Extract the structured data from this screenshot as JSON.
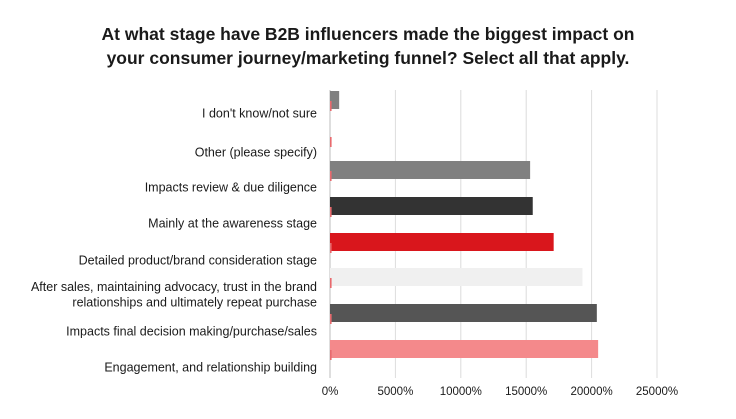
{
  "chart_data": {
    "type": "bar",
    "orientation": "horizontal",
    "title_lines": [
      "At what stage have B2B influencers made the biggest impact on",
      "your consumer journey/marketing funnel? Select all that apply."
    ],
    "categories": [
      [
        "I don't know/not sure"
      ],
      [
        "Other (please specify)"
      ],
      [
        "Impacts review & due diligence"
      ],
      [
        "Mainly at the awareness stage"
      ],
      [
        "Detailed product/brand consideration stage"
      ],
      [
        "After sales, maintaining advocacy, trust in the brand",
        "relationships and ultimately repeat purchase"
      ],
      [
        "Impacts final decision making/purchase/sales"
      ],
      [
        "Engagement, and relationship building"
      ]
    ],
    "series": [
      {
        "color": "#808080",
        "values": [
          700,
          0,
          15300,
          0,
          0,
          0,
          0,
          0
        ]
      },
      {
        "color": "#333333",
        "values": [
          0,
          0,
          0,
          15500,
          0,
          0,
          0,
          0
        ]
      },
      {
        "color": "#d9161c",
        "values": [
          0,
          0,
          0,
          0,
          17100,
          0,
          0,
          0
        ]
      },
      {
        "color": "#f0f0f0",
        "values": [
          0,
          0,
          0,
          0,
          0,
          19300,
          0,
          0
        ]
      },
      {
        "color": "#555555",
        "values": [
          0,
          0,
          0,
          0,
          0,
          0,
          20400,
          0
        ]
      },
      {
        "color": "#f4898b",
        "values": [
          0,
          0,
          0,
          0,
          0,
          0,
          0,
          20500
        ]
      }
    ],
    "xticks": [
      "0%",
      "5000%",
      "10000%",
      "15000%",
      "20000%",
      "25000%"
    ],
    "xtick_values": [
      0,
      5000,
      10000,
      15000,
      20000,
      25000
    ],
    "xlim": [
      0,
      25000
    ],
    "grid": true,
    "legend": "none"
  }
}
